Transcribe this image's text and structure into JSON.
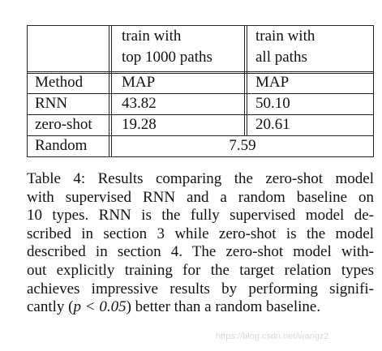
{
  "table": {
    "header": {
      "col1_line1": "train with",
      "col1_line2": "top 1000 paths",
      "col2_line1": "train with",
      "col2_line2": "all paths"
    },
    "rows": [
      {
        "method": "Method",
        "col1": "MAP",
        "col2": "MAP"
      },
      {
        "method": "RNN",
        "col1": "43.82",
        "col2": "50.10"
      },
      {
        "method": "zero-shot",
        "col1": "19.28",
        "col2": "20.61"
      }
    ],
    "random": {
      "method": "Random",
      "value": "7.59"
    }
  },
  "caption": {
    "line1": "Table 4: Results comparing the zero-shot model",
    "line2": "with supervised RNN and a random baseline on",
    "line3": "10 types. RNN is the fully supervised model de-",
    "line4": "scribed in section 3 while zero-shot is the model",
    "line5": "described in section 4. The zero-shot model with-",
    "line6": "out explicitly training for the target relation types",
    "line7": "achieves impressive results by performing signifi-",
    "line8_pre": "cantly (",
    "line8_math": "p < 0.05",
    "line8_post": ") better than a random baseline."
  },
  "watermark": "https://blog.csdn.net/wangz2"
}
